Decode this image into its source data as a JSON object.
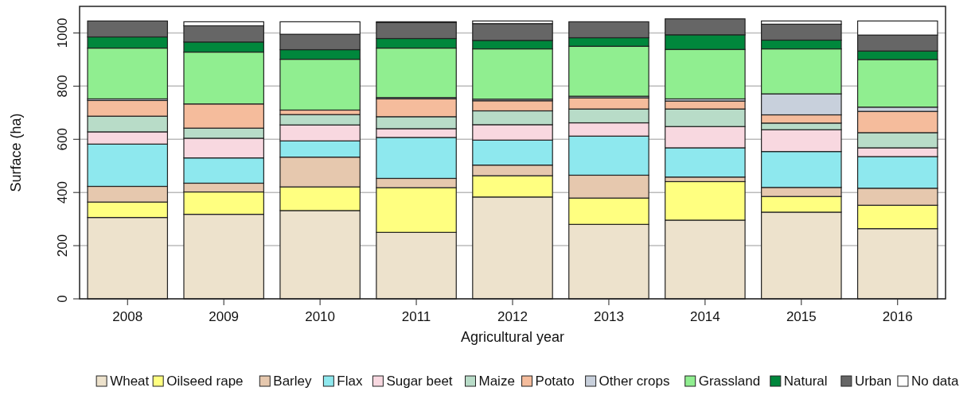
{
  "chart_data": {
    "type": "bar",
    "stacked": true,
    "xlabel": "Agricultural year",
    "ylabel": "Surface (ha)",
    "categories": [
      "2008",
      "2009",
      "2010",
      "2011",
      "2012",
      "2013",
      "2014",
      "2015",
      "2016"
    ],
    "ylim": [
      0,
      1100
    ],
    "yticks": [
      0,
      200,
      400,
      600,
      800,
      1000
    ],
    "grid": "y",
    "legend": "bottom",
    "series": [
      {
        "name": "Wheat",
        "color": "#ede2cc",
        "values": [
          306,
          318,
          332,
          250,
          383,
          280,
          296,
          326,
          264
        ]
      },
      {
        "name": "Oilseed rape",
        "color": "#ffff80",
        "values": [
          58,
          84,
          89,
          168,
          80,
          99,
          145,
          59,
          88
        ]
      },
      {
        "name": "Barley",
        "color": "#e6c8ae",
        "values": [
          59,
          33,
          112,
          35,
          40,
          86,
          17,
          34,
          64
        ]
      },
      {
        "name": "Flax",
        "color": "#8ee8ee",
        "values": [
          159,
          95,
          61,
          154,
          94,
          147,
          110,
          135,
          119
        ]
      },
      {
        "name": "Sugar beet",
        "color": "#f8d8e0",
        "values": [
          46,
          74,
          60,
          33,
          58,
          50,
          80,
          82,
          33
        ]
      },
      {
        "name": "Maize",
        "color": "#b8dcc8",
        "values": [
          59,
          38,
          39,
          45,
          52,
          52,
          66,
          25,
          57
        ]
      },
      {
        "name": "Potato",
        "color": "#f5bc9c",
        "values": [
          59,
          91,
          17,
          67,
          38,
          42,
          30,
          31,
          80
        ]
      },
      {
        "name": "Other crops",
        "color": "#c8d0dc",
        "values": [
          6,
          null,
          null,
          5,
          6,
          6,
          8,
          79,
          16
        ]
      },
      {
        "name": "Grassland",
        "color": "#90ee90",
        "values": [
          191,
          195,
          191,
          186,
          189,
          188,
          186,
          169,
          179
        ]
      },
      {
        "name": "Natural",
        "color": "#00873c",
        "values": [
          42,
          38,
          36,
          36,
          32,
          32,
          55,
          33,
          32
        ]
      },
      {
        "name": "Urban",
        "color": "#666666",
        "values": [
          60,
          61,
          58,
          60,
          63,
          60,
          60,
          60,
          60
        ]
      },
      {
        "name": "No data",
        "color": "#ffffff",
        "values": [
          0,
          15,
          47,
          3,
          10,
          0,
          0,
          12,
          53
        ]
      }
    ]
  }
}
